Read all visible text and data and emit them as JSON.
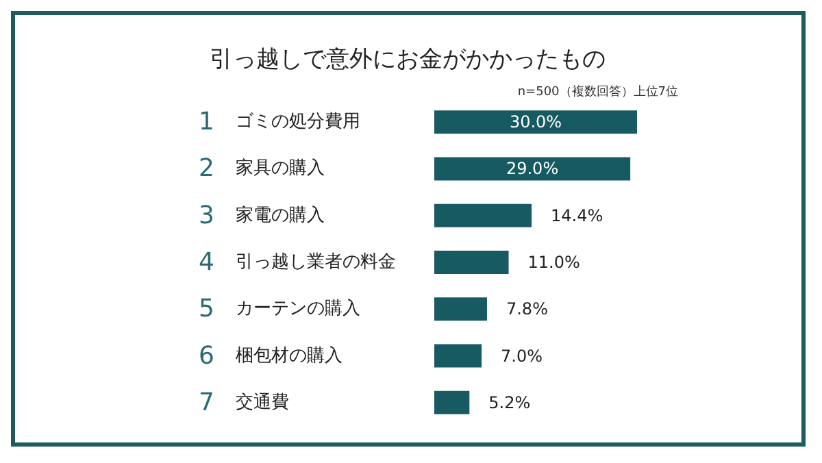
{
  "chart_data": {
    "type": "bar",
    "orientation": "horizontal",
    "title": "引っ越しで意外にお金がかかったもの",
    "annotations": [
      "n=500（複数回答）上位7位"
    ],
    "categories": [
      "1 ゴミの処分費用",
      "2 家具の購入",
      "3 家電の購入",
      "4 引っ越し業者の料金",
      "5 カーテンの購入",
      "6 梱包材の購入",
      "7 交通費"
    ],
    "values": [
      30.0,
      29.0,
      14.4,
      11.0,
      7.8,
      7.0,
      5.2
    ],
    "value_labels": [
      "30.0%",
      "29.0%",
      "14.4%",
      "11.0%",
      "7.8%",
      "7.0%",
      "5.2%"
    ],
    "color": "#175a62",
    "data_labels": true
  }
}
